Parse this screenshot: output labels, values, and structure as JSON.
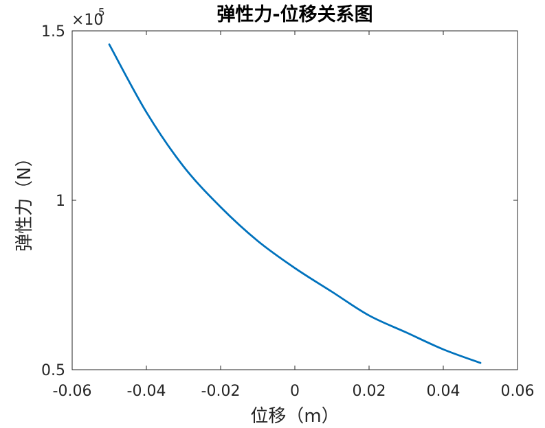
{
  "chart_data": {
    "type": "line",
    "title": "弹性力-位移关系图",
    "xlabel": "位移（m）",
    "ylabel": "弹性力（N）",
    "xlim": [
      -0.06,
      0.06
    ],
    "ylim": [
      50000,
      150000
    ],
    "xticks": [
      "-0.06",
      "-0.04",
      "-0.02",
      "0",
      "0.02",
      "0.04",
      "0.06"
    ],
    "yticks": [
      "0.5",
      "1",
      "1.5"
    ],
    "y_exponent_base": "×10",
    "y_exponent_power": "5",
    "grid": false,
    "series_color": "#0072BD",
    "series": [
      {
        "x": [
          -0.05,
          -0.04,
          -0.03,
          -0.02,
          -0.01,
          0,
          0.01,
          0.02,
          0.03,
          0.04,
          0.05
        ],
        "y": [
          146000,
          126000,
          110000,
          98000,
          88000,
          80000,
          73000,
          66000,
          61000,
          56000,
          52000
        ]
      }
    ]
  }
}
